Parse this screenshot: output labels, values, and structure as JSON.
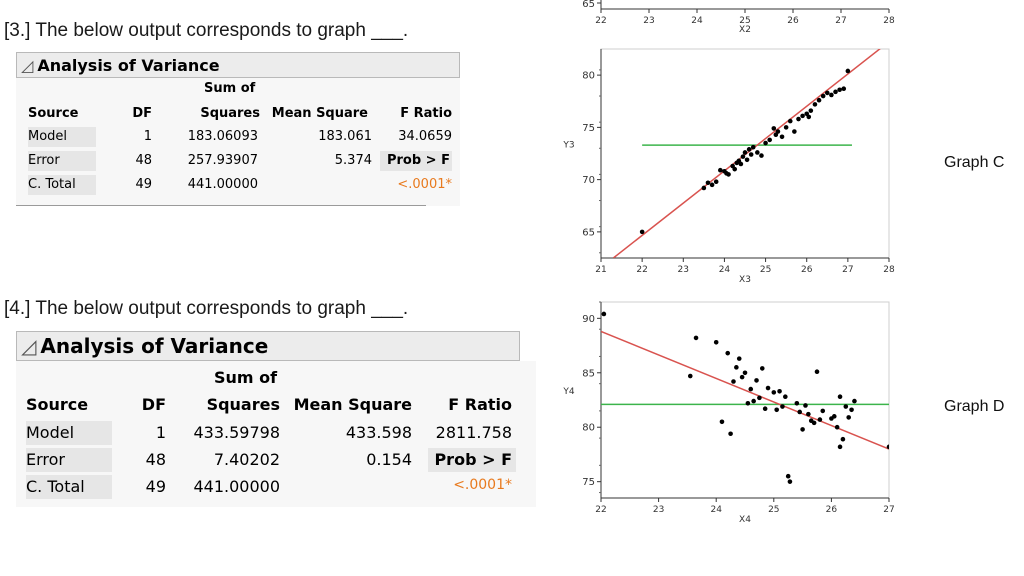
{
  "q3": {
    "question": "[3.] The below output corresponds to graph ___.",
    "title": "Analysis of Variance",
    "col_sum_of": "Sum of",
    "columns": [
      "Source",
      "DF",
      "Squares",
      "Mean Square",
      "F Ratio"
    ],
    "rows": [
      {
        "source": "Model",
        "df": "1",
        "ss": "183.06093",
        "ms": "183.061",
        "f": "34.0659"
      },
      {
        "source": "Error",
        "df": "48",
        "ss": "257.93907",
        "ms": "5.374",
        "f": "Prob > F"
      },
      {
        "source": "C. Total",
        "df": "49",
        "ss": "441.00000",
        "ms": "",
        "f": "<.0001*"
      }
    ]
  },
  "q4": {
    "question": "[4.] The below output corresponds to graph ___.",
    "title": "Analysis of Variance",
    "col_sum_of": "Sum of",
    "columns": [
      "Source",
      "DF",
      "Squares",
      "Mean Square",
      "F Ratio"
    ],
    "rows": [
      {
        "source": "Model",
        "df": "1",
        "ss": "433.59798",
        "ms": "433.598",
        "f": "2811.758"
      },
      {
        "source": "Error",
        "df": "48",
        "ss": "7.40202",
        "ms": "0.154",
        "f": "Prob > F"
      },
      {
        "source": "C. Total",
        "df": "49",
        "ss": "441.00000",
        "ms": "",
        "f": "<.0001*"
      }
    ]
  },
  "chart_data": [
    {
      "type": "scatter",
      "title": "",
      "xlabel": "X2",
      "ylabel": "",
      "xlim": [
        22,
        28
      ],
      "x_ticks": [
        "22",
        "23",
        "24",
        "25",
        "26",
        "27",
        "28"
      ],
      "y_ticks_visible": [
        "65"
      ],
      "note": "partially visible, cropped at top"
    },
    {
      "type": "scatter",
      "title": "",
      "label": "Graph C",
      "xlabel": "X3",
      "ylabel": "Y3",
      "xlim": [
        21,
        28
      ],
      "ylim": [
        62.5,
        82.5
      ],
      "x_ticks": [
        21,
        22,
        23,
        24,
        25,
        26,
        27,
        28
      ],
      "y_ticks": [
        65,
        70,
        75,
        80
      ],
      "mean_line": {
        "y": 73.3,
        "x_from": 22,
        "x_to": 27.1,
        "color": "#3cb44b"
      },
      "fit_line": {
        "x1": 21.3,
        "y1": 62.5,
        "x2": 28.0,
        "y2": 83.2,
        "color": "#d9534f"
      },
      "points": [
        {
          "x": 22.0,
          "y": 65.0
        },
        {
          "x": 23.5,
          "y": 69.2
        },
        {
          "x": 23.6,
          "y": 69.7
        },
        {
          "x": 23.7,
          "y": 69.5
        },
        {
          "x": 23.8,
          "y": 69.8
        },
        {
          "x": 23.9,
          "y": 70.9
        },
        {
          "x": 24.0,
          "y": 70.8
        },
        {
          "x": 24.05,
          "y": 70.6
        },
        {
          "x": 24.1,
          "y": 70.5
        },
        {
          "x": 24.2,
          "y": 71.3
        },
        {
          "x": 24.25,
          "y": 71.0
        },
        {
          "x": 24.3,
          "y": 71.6
        },
        {
          "x": 24.35,
          "y": 71.8
        },
        {
          "x": 24.4,
          "y": 71.5
        },
        {
          "x": 24.45,
          "y": 72.2
        },
        {
          "x": 24.5,
          "y": 72.6
        },
        {
          "x": 24.55,
          "y": 71.9
        },
        {
          "x": 24.6,
          "y": 72.9
        },
        {
          "x": 24.65,
          "y": 72.4
        },
        {
          "x": 24.7,
          "y": 73.1
        },
        {
          "x": 24.8,
          "y": 72.6
        },
        {
          "x": 24.9,
          "y": 72.3
        },
        {
          "x": 25.0,
          "y": 73.5
        },
        {
          "x": 25.1,
          "y": 73.8
        },
        {
          "x": 25.2,
          "y": 74.9
        },
        {
          "x": 25.25,
          "y": 74.3
        },
        {
          "x": 25.3,
          "y": 74.6
        },
        {
          "x": 25.4,
          "y": 74.1
        },
        {
          "x": 25.5,
          "y": 75.0
        },
        {
          "x": 25.6,
          "y": 75.6
        },
        {
          "x": 25.7,
          "y": 74.6
        },
        {
          "x": 25.8,
          "y": 75.8
        },
        {
          "x": 25.9,
          "y": 76.1
        },
        {
          "x": 26.0,
          "y": 76.3
        },
        {
          "x": 26.05,
          "y": 76.0
        },
        {
          "x": 26.1,
          "y": 76.6
        },
        {
          "x": 26.2,
          "y": 77.2
        },
        {
          "x": 26.3,
          "y": 77.6
        },
        {
          "x": 26.4,
          "y": 78.0
        },
        {
          "x": 26.5,
          "y": 78.3
        },
        {
          "x": 26.6,
          "y": 78.1
        },
        {
          "x": 26.7,
          "y": 78.4
        },
        {
          "x": 26.8,
          "y": 78.6
        },
        {
          "x": 26.9,
          "y": 78.7
        },
        {
          "x": 27.0,
          "y": 80.4
        }
      ]
    },
    {
      "type": "scatter",
      "title": "",
      "label": "Graph D",
      "xlabel": "X4",
      "ylabel": "Y4",
      "xlim": [
        22,
        27
      ],
      "ylim": [
        73.5,
        91.5
      ],
      "x_ticks": [
        22,
        23,
        24,
        25,
        26,
        27
      ],
      "y_ticks": [
        75,
        80,
        85,
        90
      ],
      "mean_line": {
        "y": 82.1,
        "x_from": 22,
        "x_to": 27,
        "color": "#3cb44b"
      },
      "fit_line": {
        "x1": 22.0,
        "y1": 88.8,
        "x2": 27.0,
        "y2": 78.0,
        "color": "#d9534f"
      },
      "points": [
        {
          "x": 22.05,
          "y": 90.4
        },
        {
          "x": 23.55,
          "y": 84.7
        },
        {
          "x": 23.65,
          "y": 88.2
        },
        {
          "x": 24.0,
          "y": 87.8
        },
        {
          "x": 24.1,
          "y": 80.5
        },
        {
          "x": 24.2,
          "y": 86.8
        },
        {
          "x": 24.25,
          "y": 79.4
        },
        {
          "x": 24.3,
          "y": 84.2
        },
        {
          "x": 24.35,
          "y": 85.5
        },
        {
          "x": 24.4,
          "y": 86.3
        },
        {
          "x": 24.45,
          "y": 84.6
        },
        {
          "x": 24.5,
          "y": 85.0
        },
        {
          "x": 24.55,
          "y": 82.2
        },
        {
          "x": 24.6,
          "y": 83.5
        },
        {
          "x": 24.65,
          "y": 82.4
        },
        {
          "x": 24.7,
          "y": 84.3
        },
        {
          "x": 24.75,
          "y": 82.7
        },
        {
          "x": 24.8,
          "y": 85.4
        },
        {
          "x": 24.85,
          "y": 81.7
        },
        {
          "x": 24.9,
          "y": 83.6
        },
        {
          "x": 25.0,
          "y": 83.2
        },
        {
          "x": 25.05,
          "y": 81.6
        },
        {
          "x": 25.1,
          "y": 83.3
        },
        {
          "x": 25.15,
          "y": 81.9
        },
        {
          "x": 25.2,
          "y": 82.8
        },
        {
          "x": 25.25,
          "y": 75.5
        },
        {
          "x": 25.28,
          "y": 75.0
        },
        {
          "x": 25.4,
          "y": 82.2
        },
        {
          "x": 25.45,
          "y": 81.4
        },
        {
          "x": 25.5,
          "y": 79.8
        },
        {
          "x": 25.55,
          "y": 82.0
        },
        {
          "x": 25.6,
          "y": 81.2
        },
        {
          "x": 25.65,
          "y": 80.6
        },
        {
          "x": 25.7,
          "y": 80.4
        },
        {
          "x": 25.75,
          "y": 85.1
        },
        {
          "x": 25.8,
          "y": 80.7
        },
        {
          "x": 25.85,
          "y": 81.5
        },
        {
          "x": 26.0,
          "y": 80.8
        },
        {
          "x": 26.05,
          "y": 81.0
        },
        {
          "x": 26.1,
          "y": 80.0
        },
        {
          "x": 26.15,
          "y": 78.2
        },
        {
          "x": 26.2,
          "y": 78.9
        },
        {
          "x": 26.25,
          "y": 81.9
        },
        {
          "x": 26.3,
          "y": 80.9
        },
        {
          "x": 26.35,
          "y": 81.6
        },
        {
          "x": 26.4,
          "y": 82.4
        },
        {
          "x": 26.15,
          "y": 82.8
        },
        {
          "x": 27.0,
          "y": 78.2
        }
      ]
    }
  ]
}
